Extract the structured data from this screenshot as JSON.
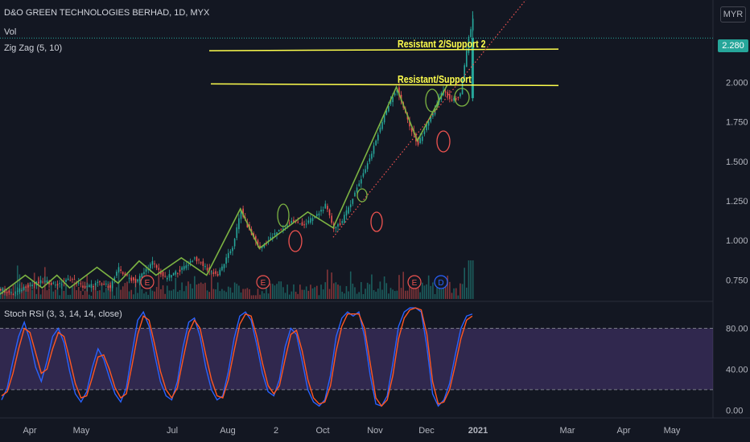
{
  "header": {
    "symbol_title": "D&O GREEN TECHNOLOGIES BERHAD, 1D, MYX",
    "vol_label": "Vol",
    "zigzag_label": "Zig Zag (5, 10)",
    "currency": "MYR",
    "last_price": "2.280"
  },
  "annotations": {
    "line1": "Resistant 2/Support 2",
    "line2": "Resistant/Support"
  },
  "indicator": {
    "label": "Stoch RSI (3, 3, 14, 14, close)"
  },
  "colors": {
    "background": "#131722",
    "up": "#26a69a",
    "down": "#ef5350",
    "zigzag": "#7cb342",
    "annotation": "#ffff4d",
    "stoch_k": "#2962ff",
    "stoch_d": "#ff5722",
    "stoch_band": "#7e57c2",
    "earnings": "#ef5350",
    "dividend": "#2962ff"
  },
  "chart_data": [
    {
      "type": "candlestick",
      "title": "D&O GREEN TECHNOLOGIES BERHAD, 1D, MYX",
      "x_ticks": [
        "Apr",
        "May",
        "Jul",
        "Aug",
        "2",
        "Oct",
        "Nov",
        "Dec",
        "2021",
        "Mar",
        "Apr",
        "May"
      ],
      "y_ticks": [
        "0.750",
        "1.000",
        "1.250",
        "1.500",
        "1.750",
        "2.000"
      ],
      "ylim": [
        0.63,
        2.48
      ],
      "price_path": [
        [
          0,
          0.69
        ],
        [
          6,
          0.66
        ],
        [
          12,
          0.71
        ],
        [
          20,
          0.74
        ],
        [
          28,
          0.72
        ],
        [
          33,
          0.76
        ],
        [
          40,
          0.7
        ],
        [
          46,
          0.73
        ],
        [
          52,
          0.71
        ],
        [
          56,
          0.82
        ],
        [
          60,
          0.77
        ],
        [
          64,
          0.74
        ],
        [
          72,
          0.86
        ],
        [
          78,
          0.76
        ],
        [
          86,
          0.82
        ],
        [
          92,
          0.89
        ],
        [
          98,
          0.82
        ],
        [
          103,
          0.78
        ],
        [
          110,
          0.96
        ],
        [
          114,
          1.19
        ],
        [
          118,
          1.06
        ],
        [
          123,
          0.95
        ],
        [
          127,
          1.0
        ],
        [
          131,
          1.05
        ],
        [
          138,
          1.12
        ],
        [
          144,
          1.1
        ],
        [
          150,
          1.16
        ],
        [
          154,
          1.22
        ],
        [
          158,
          1.08
        ],
        [
          162,
          1.12
        ],
        [
          168,
          1.3
        ],
        [
          176,
          1.55
        ],
        [
          182,
          1.8
        ],
        [
          188,
          1.96
        ],
        [
          194,
          1.72
        ],
        [
          198,
          1.61
        ],
        [
          204,
          1.78
        ],
        [
          210,
          1.95
        ],
        [
          214,
          1.88
        ],
        [
          218,
          1.92
        ],
        [
          222,
          2.28
        ],
        [
          224,
          2.4
        ]
      ],
      "zigzag": [
        [
          0,
          0.66
        ],
        [
          12,
          0.78
        ],
        [
          20,
          0.7
        ],
        [
          27,
          0.78
        ],
        [
          33,
          0.7
        ],
        [
          46,
          0.83
        ],
        [
          56,
          0.73
        ],
        [
          66,
          0.87
        ],
        [
          74,
          0.78
        ],
        [
          86,
          0.89
        ],
        [
          98,
          0.78
        ],
        [
          114,
          1.2
        ],
        [
          123,
          0.95
        ],
        [
          146,
          1.18
        ],
        [
          158,
          1.08
        ],
        [
          188,
          1.97
        ],
        [
          198,
          1.63
        ],
        [
          212,
          1.98
        ]
      ],
      "horizontal_levels": [
        {
          "label": "Resistant 2/Support 2",
          "y_start": 2.2,
          "y_end": 2.21
        },
        {
          "label": "Resistant/Support",
          "y_start": 1.99,
          "y_end": 1.98
        }
      ],
      "trendline": {
        "from": [
          158,
          1.02
        ],
        "to": [
          256,
          2.63
        ],
        "style": "dotted"
      },
      "events": [
        {
          "letter": "E",
          "bar": 66
        },
        {
          "letter": "E",
          "bar": 122
        },
        {
          "letter": "E",
          "bar": 192
        },
        {
          "letter": "D",
          "bar": 204
        }
      ],
      "last_price": 2.28
    },
    {
      "type": "line",
      "title": "Stoch RSI (3, 3, 14, 14, close)",
      "y_ticks": [
        "0.00",
        "40.00",
        "80.00"
      ],
      "ylim": [
        -6,
        104
      ],
      "bands": [
        20,
        80
      ],
      "series": [
        {
          "values": [
            10,
            22,
            48,
            72,
            86,
            68,
            42,
            28,
            48,
            72,
            80,
            66,
            38,
            16,
            8,
            18,
            42,
            60,
            50,
            32,
            16,
            8,
            22,
            56,
            88,
            96,
            82,
            54,
            28,
            14,
            10,
            28,
            62,
            86,
            90,
            72,
            42,
            20,
            10,
            14,
            38,
            70,
            92,
            96,
            88,
            64,
            36,
            18,
            14,
            30,
            62,
            80,
            74,
            48,
            20,
            8,
            4,
            10,
            34,
            72,
            90,
            96,
            92,
            96,
            72,
            34,
            6,
            4,
            14,
            46,
            82,
            96,
            100,
            100,
            96,
            62,
            16,
            4,
            10,
            26,
            54,
            80,
            92,
            94
          ]
        },
        {
          "values": [
            14,
            18,
            36,
            60,
            80,
            76,
            56,
            36,
            40,
            60,
            76,
            72,
            50,
            26,
            12,
            14,
            32,
            52,
            54,
            40,
            22,
            12,
            16,
            44,
            74,
            92,
            88,
            64,
            38,
            20,
            12,
            22,
            50,
            76,
            88,
            80,
            54,
            30,
            14,
            12,
            30,
            58,
            84,
            94,
            92,
            72,
            46,
            24,
            16,
            24,
            50,
            74,
            78,
            58,
            30,
            12,
            6,
            8,
            24,
            58,
            82,
            94,
            94,
            94,
            80,
            46,
            12,
            4,
            10,
            34,
            70,
            90,
            98,
            100,
            98,
            74,
            28,
            6,
            8,
            20,
            44,
            70,
            88,
            92
          ]
        }
      ]
    }
  ]
}
